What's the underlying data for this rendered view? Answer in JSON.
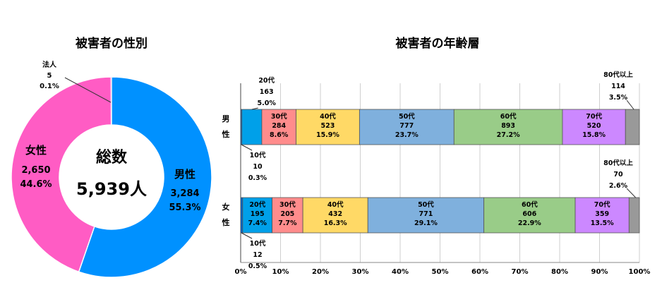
{
  "chart_data": [
    {
      "type": "pie",
      "title": "被害者の性別",
      "center_label": "総数",
      "center_value": "5,939人",
      "slices": [
        {
          "name": "男性",
          "value": 3284,
          "value_label": "3,284",
          "percent": "55.3%",
          "color": "#0091FF"
        },
        {
          "name": "女性",
          "value": 2650,
          "value_label": "2,650",
          "percent": "44.6%",
          "color": "#FF5CC4"
        },
        {
          "name": "法人",
          "value": 5,
          "value_label": "5",
          "percent": "0.1%",
          "color": "#E54B9E"
        }
      ]
    },
    {
      "type": "bar",
      "stacked": "percent",
      "orientation": "horizontal",
      "title": "被害者の年齢層",
      "xlim": [
        0,
        100
      ],
      "xticks": [
        "0%",
        "10%",
        "20%",
        "30%",
        "40%",
        "50%",
        "60%",
        "70%",
        "80%",
        "90%",
        "100%"
      ],
      "grid": true,
      "rows": [
        {
          "label": "男性",
          "segments": [
            {
              "name": "10代",
              "value": 10,
              "percent": 0.3,
              "percent_label": "0.3%",
              "color": "#0066CC"
            },
            {
              "name": "20代",
              "value": 163,
              "percent": 5.0,
              "percent_label": "5.0%",
              "color": "#00A0E9"
            },
            {
              "name": "30代",
              "value": 284,
              "percent": 8.6,
              "percent_label": "8.6%",
              "color": "#FF8C8C"
            },
            {
              "name": "40代",
              "value": 523,
              "percent": 15.9,
              "percent_label": "15.9%",
              "color": "#FFD966"
            },
            {
              "name": "50代",
              "value": 777,
              "percent": 23.7,
              "percent_label": "23.7%",
              "color": "#7FB0DD"
            },
            {
              "name": "60代",
              "value": 893,
              "percent": 27.2,
              "percent_label": "27.2%",
              "color": "#99CC88"
            },
            {
              "name": "70代",
              "value": 520,
              "percent": 15.8,
              "percent_label": "15.8%",
              "color": "#CC88FF"
            },
            {
              "name": "80代以上",
              "value": 114,
              "percent": 3.5,
              "percent_label": "3.5%",
              "color": "#999999"
            }
          ]
        },
        {
          "label": "女性",
          "segments": [
            {
              "name": "10代",
              "value": 12,
              "percent": 0.5,
              "percent_label": "0.5%",
              "color": "#0066CC"
            },
            {
              "name": "20代",
              "value": 195,
              "percent": 7.4,
              "percent_label": "7.4%",
              "color": "#00A0E9"
            },
            {
              "name": "30代",
              "value": 205,
              "percent": 7.7,
              "percent_label": "7.7%",
              "color": "#FF8C8C"
            },
            {
              "name": "40代",
              "value": 432,
              "percent": 16.3,
              "percent_label": "16.3%",
              "color": "#FFD966"
            },
            {
              "name": "50代",
              "value": 771,
              "percent": 29.1,
              "percent_label": "29.1%",
              "color": "#7FB0DD"
            },
            {
              "name": "60代",
              "value": 606,
              "percent": 22.9,
              "percent_label": "22.9%",
              "color": "#99CC88"
            },
            {
              "name": "70代",
              "value": 359,
              "percent": 13.5,
              "percent_label": "13.5%",
              "color": "#CC88FF"
            },
            {
              "name": "80代以上",
              "value": 70,
              "percent": 2.6,
              "percent_label": "2.6%",
              "color": "#999999"
            }
          ]
        }
      ]
    }
  ]
}
